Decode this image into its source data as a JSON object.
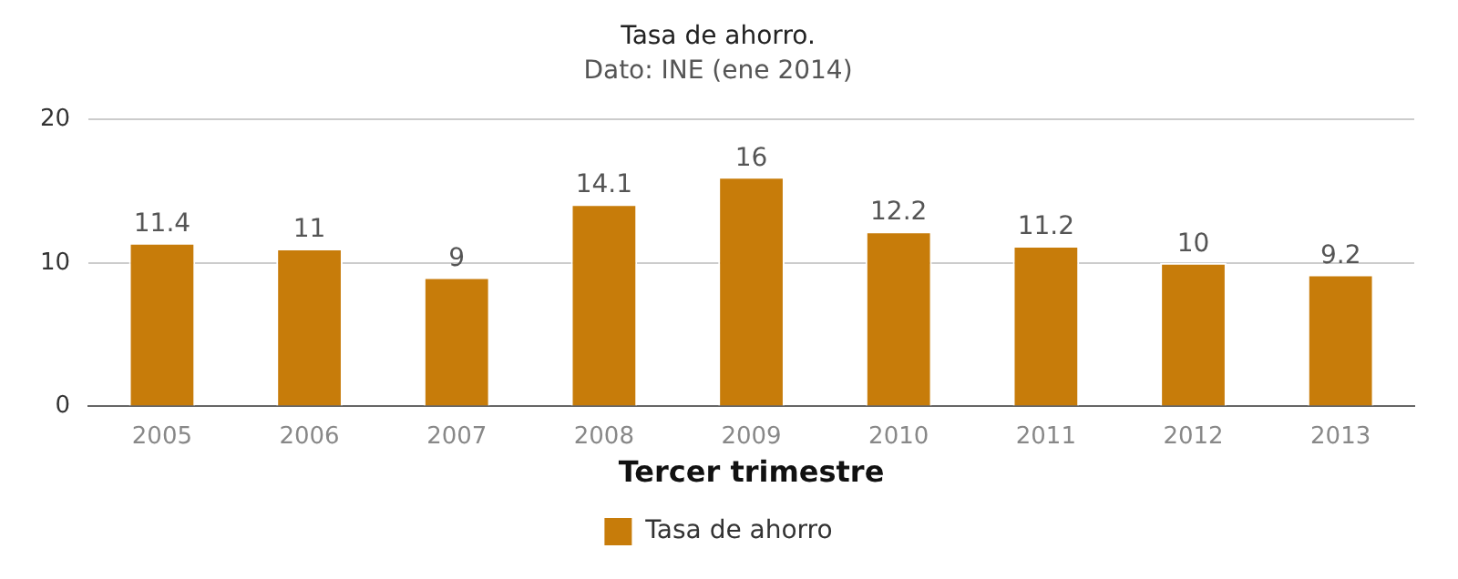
{
  "chart_data": {
    "type": "bar",
    "title": "Tasa de ahorro.",
    "subtitle": "Dato: INE (ene 2014)",
    "xlabel": "Tercer trimestre",
    "categories": [
      "2005",
      "2006",
      "2007",
      "2008",
      "2009",
      "2010",
      "2011",
      "2012",
      "2013"
    ],
    "series": [
      {
        "name": "Tasa de ahorro",
        "color": "#c77c0a",
        "values": [
          11.4,
          11,
          9,
          14.1,
          16,
          12.2,
          11.2,
          10,
          9.2
        ]
      }
    ],
    "ylim": [
      0,
      20
    ],
    "yticks": [
      0,
      10,
      20
    ],
    "grid": "y",
    "legend": "bottom",
    "data_labels": true
  }
}
